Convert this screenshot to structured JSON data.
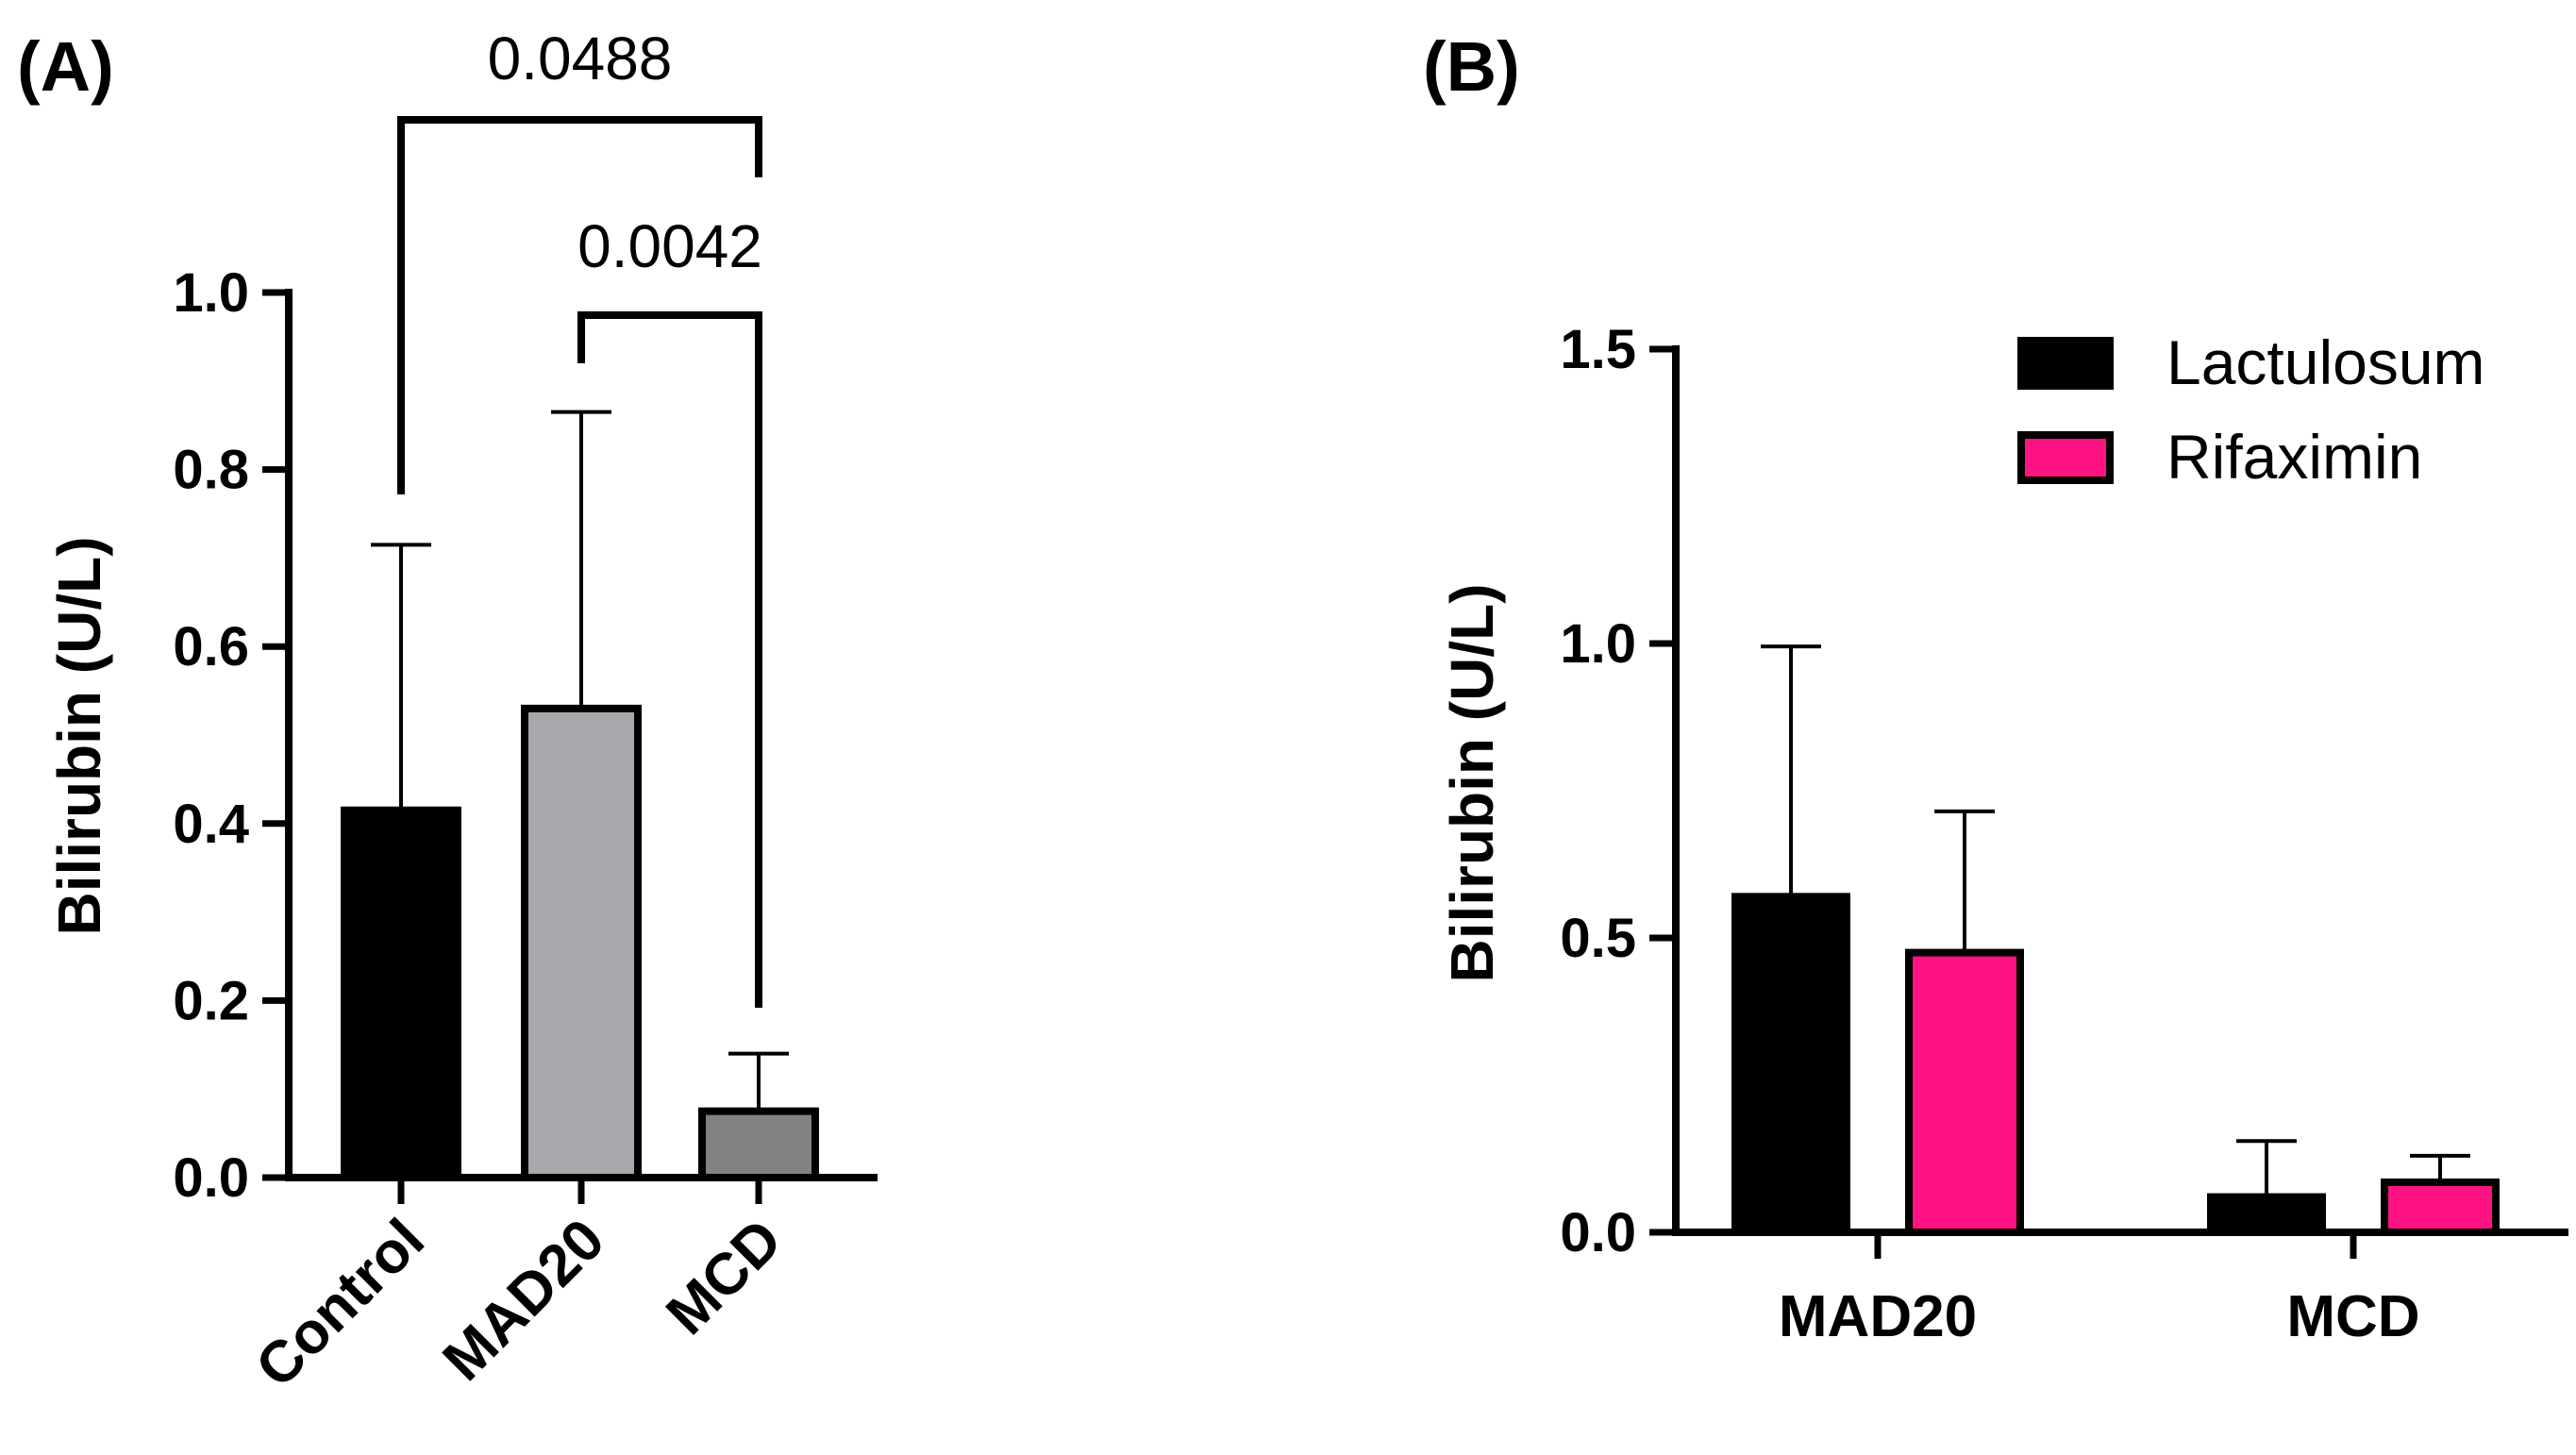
{
  "chart_data": [
    {
      "panel_label": "(A)",
      "type": "bar",
      "ylabel": "Bilirubin (U/L)",
      "ylim": [
        0,
        1.0
      ],
      "yticks": [
        "0.0",
        "0.2",
        "0.4",
        "0.6",
        "0.8",
        "1.0"
      ],
      "categories": [
        "Control",
        "MAD20",
        "MCD"
      ],
      "values": [
        0.415,
        0.53,
        0.075
      ],
      "errors": [
        0.3,
        0.335,
        0.065
      ],
      "colors": [
        "#000000",
        "#a7a8ab",
        "#828282"
      ],
      "comparisons": [
        {
          "from": "Control",
          "to": "MCD",
          "p_value": "0.0488"
        },
        {
          "from": "MAD20",
          "to": "MCD",
          "p_value": "0.0042"
        }
      ]
    },
    {
      "panel_label": "(B)",
      "type": "bar",
      "ylabel": "Bilirubin (U/L)",
      "ylim": [
        0,
        1.5
      ],
      "yticks": [
        "0.0",
        "0.5",
        "1.0",
        "1.5"
      ],
      "categories": [
        "MAD20",
        "MCD"
      ],
      "legend_position": "top-right",
      "series": [
        {
          "name": "Lactulosum",
          "color": "#000000",
          "values": [
            0.57,
            0.06
          ],
          "errors": [
            0.425,
            0.095
          ]
        },
        {
          "name": "Rifaximin",
          "color": "#ff1281",
          "values": [
            0.475,
            0.085
          ],
          "errors": [
            0.24,
            0.045
          ]
        }
      ]
    }
  ]
}
